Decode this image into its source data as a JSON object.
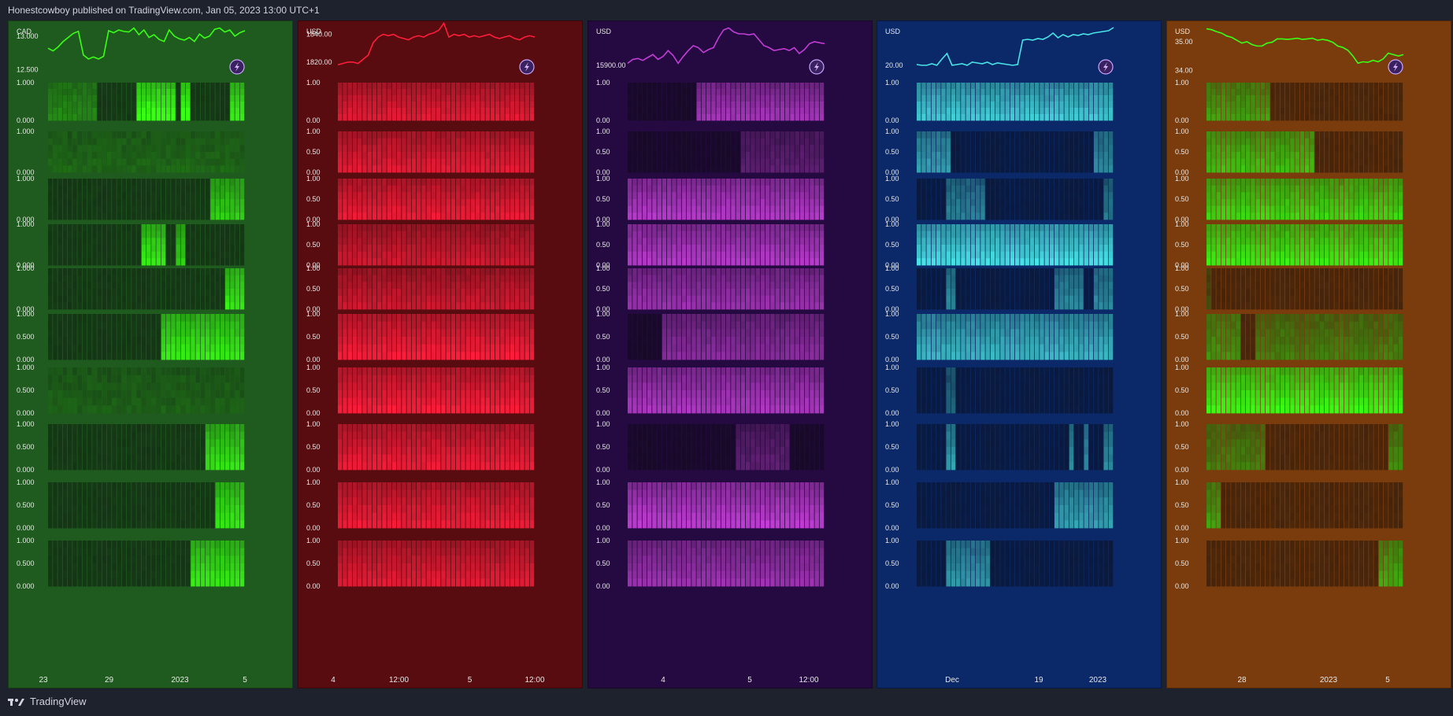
{
  "header": {
    "publisher": "Honestcowboy published on TradingView.com, Jan 05, 2023 13:00 UTC+1"
  },
  "footer": {
    "brand": "TradingView"
  },
  "chart_data": [
    {
      "type": "line+heatmap",
      "currency": "CAD",
      "background": "#1f5b1f",
      "line_color": "#39ff14",
      "cell_color": "#39ff14",
      "price_labels": [
        "13.000",
        "12.500"
      ],
      "price_range": [
        12.45,
        13.15
      ],
      "price_series": [
        12.82,
        12.78,
        12.84,
        12.92,
        12.98,
        13.04,
        13.07,
        12.72,
        12.66,
        12.69,
        12.66,
        12.7,
        13.08,
        13.05,
        13.09,
        13.07,
        13.06,
        13.12,
        13.02,
        13.09,
        12.98,
        13.02,
        12.95,
        12.92,
        13.09,
        13.0,
        12.96,
        12.94,
        12.98,
        12.92,
        13.03,
        12.97,
        13.0,
        13.1,
        13.12,
        13.06,
        13.09,
        13.0,
        13.05,
        13.08
      ],
      "subpane_labels": [
        [
          "1.000",
          "0.000"
        ],
        [
          "1.000",
          "0.000"
        ],
        [
          "1.000",
          "0.000"
        ],
        [
          "1.000",
          "0.000"
        ],
        [
          "1.000",
          "0.000"
        ],
        [
          "1.000",
          "0.500",
          "0.000"
        ],
        [
          "1.000",
          "0.500",
          "0.000"
        ],
        [
          "1.000",
          "0.500",
          "0.000"
        ],
        [
          "1.000",
          "0.500",
          "0.000"
        ],
        [
          "1.000",
          "0.500",
          "0.000"
        ]
      ],
      "x_labels": [
        "23",
        "29",
        "2023",
        "5"
      ],
      "bars": 40,
      "active": [
        [
          [
            18,
            25,
            1.0
          ],
          [
            27,
            28,
            1.0
          ],
          [
            37,
            39,
            0.9
          ],
          [
            0,
            9,
            0.35
          ]
        ],
        [
          [
            0,
            39,
            0.18
          ]
        ],
        [
          [
            33,
            39,
            0.7
          ]
        ],
        [
          [
            19,
            23,
            0.85
          ],
          [
            26,
            27,
            0.7
          ]
        ],
        [
          [
            36,
            39,
            0.85
          ]
        ],
        [
          [
            23,
            39,
            0.85
          ]
        ],
        [
          [
            0,
            39,
            0.15
          ]
        ],
        [
          [
            32,
            39,
            0.8
          ]
        ],
        [
          [
            34,
            39,
            0.85
          ]
        ],
        [
          [
            29,
            39,
            0.85
          ]
        ]
      ]
    },
    {
      "type": "line+heatmap",
      "currency": "USD",
      "background": "#580c10",
      "line_color": "#ff1d3b",
      "cell_color": "#ff1d3b",
      "price_labels": [
        "1840.00",
        "1820.00"
      ],
      "price_range": [
        1812,
        1846
      ],
      "price_series": [
        1818,
        1819,
        1820,
        1820,
        1819,
        1822,
        1825,
        1834,
        1838,
        1840,
        1839,
        1840,
        1838,
        1837,
        1836,
        1838,
        1839,
        1838,
        1840,
        1841,
        1843,
        1848,
        1838,
        1840,
        1839,
        1840,
        1838,
        1839,
        1838,
        1839,
        1840,
        1838,
        1837,
        1838,
        1839,
        1837,
        1836,
        1838,
        1839,
        1838
      ],
      "subpane_labels": [
        [
          "1.00",
          "0.00"
        ],
        [
          "1.00",
          "0.50",
          "0.00"
        ],
        [
          "1.00",
          "0.50",
          "0.00"
        ],
        [
          "1.00",
          "0.50",
          "0.00"
        ],
        [
          "1.00",
          "0.50",
          "0.00"
        ],
        [
          "1.00",
          "0.50",
          "0.00"
        ],
        [
          "1.00",
          "0.50",
          "0.00"
        ],
        [
          "1.00",
          "0.50",
          "0.00"
        ],
        [
          "1.00",
          "0.50",
          "0.00"
        ],
        [
          "1.00",
          "0.50",
          "0.00"
        ]
      ],
      "x_labels": [
        "4",
        "12:00",
        "5",
        "12:00"
      ],
      "bars": 40,
      "active": [
        [
          [
            0,
            39,
            0.8
          ]
        ],
        [
          [
            0,
            39,
            0.8
          ]
        ],
        [
          [
            0,
            39,
            0.85
          ]
        ],
        [
          [
            0,
            39,
            0.7
          ]
        ],
        [
          [
            0,
            39,
            0.7
          ]
        ],
        [
          [
            0,
            39,
            0.9
          ]
        ],
        [
          [
            0,
            39,
            0.9
          ]
        ],
        [
          [
            0,
            39,
            0.85
          ]
        ],
        [
          [
            0,
            39,
            0.85
          ]
        ],
        [
          [
            0,
            39,
            0.8
          ]
        ]
      ]
    },
    {
      "type": "line+heatmap",
      "currency": "USD",
      "background": "#250a42",
      "line_color": "#c23dd6",
      "cell_color": "#c23dd6",
      "price_labels": [
        "15900.00"
      ],
      "price_range": [
        15860,
        16100
      ],
      "price_series": [
        15910,
        15930,
        15935,
        15925,
        15940,
        15955,
        15930,
        15945,
        15975,
        15950,
        15910,
        15945,
        15975,
        16000,
        15990,
        15965,
        15980,
        15990,
        16040,
        16080,
        16090,
        16070,
        16060,
        16060,
        16055,
        16060,
        16030,
        16000,
        15990,
        15975,
        15980,
        15985,
        15975,
        15990,
        15960,
        15980,
        16010,
        16020,
        16015,
        16010
      ],
      "subpane_labels": [
        [
          "1.00",
          "0.00"
        ],
        [
          "1.00",
          "0.50",
          "0.00"
        ],
        [
          "1.00",
          "0.50",
          "0.00"
        ],
        [
          "1.00",
          "0.50",
          "0.00"
        ],
        [
          "1.00",
          "0.50",
          "0.00"
        ],
        [
          "1.00",
          "0.50",
          "0.00"
        ],
        [
          "1.00",
          "0.50",
          "0.00"
        ],
        [
          "1.00",
          "0.50",
          "0.00"
        ],
        [
          "1.00",
          "0.50",
          "0.00"
        ],
        [
          "1.00",
          "0.50",
          "0.00"
        ]
      ],
      "x_labels": [
        "4",
        "5",
        "12:00"
      ],
      "bars": 40,
      "active": [
        [
          [
            14,
            39,
            0.75
          ]
        ],
        [
          [
            23,
            39,
            0.35
          ]
        ],
        [
          [
            0,
            39,
            0.85
          ]
        ],
        [
          [
            0,
            39,
            0.85
          ]
        ],
        [
          [
            0,
            39,
            0.7
          ]
        ],
        [
          [
            7,
            39,
            0.6
          ]
        ],
        [
          [
            0,
            39,
            0.8
          ]
        ],
        [
          [
            22,
            32,
            0.35
          ]
        ],
        [
          [
            0,
            39,
            0.9
          ]
        ],
        [
          [
            0,
            39,
            0.7
          ]
        ]
      ]
    },
    {
      "type": "line+heatmap",
      "currency": "USD",
      "background": "#0b2868",
      "line_color": "#48e4e8",
      "cell_color": "#48e4e8",
      "price_labels": [
        "20.00"
      ],
      "price_range": [
        19.0,
        25.0
      ],
      "price_series": [
        20.1,
        20.0,
        20.0,
        20.2,
        20.0,
        20.8,
        21.5,
        20.0,
        20.1,
        20.2,
        20.0,
        20.4,
        20.3,
        20.2,
        20.4,
        20.1,
        20.3,
        20.2,
        20.1,
        20.0,
        20.1,
        23.2,
        23.3,
        23.2,
        23.4,
        23.3,
        23.6,
        24.1,
        23.5,
        23.9,
        23.6,
        23.9,
        23.8,
        24.0,
        23.9,
        24.1,
        24.2,
        24.3,
        24.4,
        24.8
      ],
      "subpane_labels": [
        [
          "1.00",
          "0.00"
        ],
        [
          "1.00",
          "0.50",
          "0.00"
        ],
        [
          "1.00",
          "0.50",
          "0.00"
        ],
        [
          "1.00",
          "0.50",
          "0.00"
        ],
        [
          "1.00",
          "0.50",
          "0.00"
        ],
        [
          "1.00",
          "0.50",
          "0.00"
        ],
        [
          "1.00",
          "0.50",
          "0.00"
        ],
        [
          "1.00",
          "0.50",
          "0.00"
        ],
        [
          "1.00",
          "0.50",
          "0.00"
        ],
        [
          "1.00",
          "0.50",
          "0.00"
        ]
      ],
      "x_labels": [
        "Dec",
        "19",
        "2023"
      ],
      "bars": 40,
      "active": [
        [
          [
            0,
            39,
            0.8
          ]
        ],
        [
          [
            0,
            6,
            0.6
          ],
          [
            36,
            39,
            0.5
          ]
        ],
        [
          [
            6,
            13,
            0.45
          ],
          [
            38,
            39,
            0.4
          ]
        ],
        [
          [
            0,
            39,
            0.9
          ]
        ],
        [
          [
            6,
            7,
            0.5
          ],
          [
            28,
            33,
            0.5
          ],
          [
            36,
            39,
            0.5
          ]
        ],
        [
          [
            0,
            39,
            0.7
          ]
        ],
        [
          [
            6,
            7,
            0.3
          ]
        ],
        [
          [
            6,
            7,
            0.6
          ],
          [
            31,
            31,
            0.5
          ],
          [
            34,
            34,
            0.5
          ],
          [
            38,
            39,
            0.5
          ]
        ],
        [
          [
            28,
            39,
            0.6
          ]
        ],
        [
          [
            6,
            14,
            0.55
          ]
        ]
      ]
    },
    {
      "type": "line+heatmap",
      "currency": "USD",
      "background": "#7a3c0c",
      "line_color": "#39ff14",
      "cell_color": "#39ff14",
      "price_labels": [
        "35.00",
        "34.00"
      ],
      "price_range": [
        33.9,
        35.55
      ],
      "price_series": [
        35.45,
        35.42,
        35.35,
        35.3,
        35.2,
        35.15,
        35.05,
        34.95,
        35.0,
        34.9,
        34.85,
        34.85,
        34.95,
        34.98,
        35.1,
        35.1,
        35.08,
        35.1,
        35.12,
        35.08,
        35.1,
        35.12,
        35.05,
        35.08,
        35.05,
        34.98,
        34.85,
        34.8,
        34.7,
        34.5,
        34.25,
        34.3,
        34.28,
        34.35,
        34.3,
        34.4,
        34.6,
        34.55,
        34.5,
        34.55
      ],
      "subpane_labels": [
        [
          "1.00",
          "0.00"
        ],
        [
          "1.00",
          "0.50",
          "0.00"
        ],
        [
          "1.00",
          "0.50",
          "0.00"
        ],
        [
          "1.00",
          "0.50",
          "0.00"
        ],
        [
          "1.00",
          "0.50",
          "0.00"
        ],
        [
          "1.00",
          "0.50",
          "0.00"
        ],
        [
          "1.00",
          "0.50",
          "0.00"
        ],
        [
          "1.00",
          "0.50",
          "0.00"
        ],
        [
          "1.00",
          "0.50",
          "0.00"
        ],
        [
          "1.00",
          "0.50",
          "0.00"
        ]
      ],
      "x_labels": [
        "28",
        "2023",
        "5"
      ],
      "bars": 40,
      "active": [
        [
          [
            0,
            12,
            0.5
          ]
        ],
        [
          [
            0,
            21,
            0.65
          ]
        ],
        [
          [
            0,
            39,
            0.75
          ]
        ],
        [
          [
            0,
            39,
            0.85
          ]
        ],
        [
          [
            0,
            0,
            0.1
          ]
        ],
        [
          [
            0,
            6,
            0.45
          ],
          [
            10,
            39,
            0.35
          ]
        ],
        [
          [
            0,
            39,
            0.9
          ]
        ],
        [
          [
            0,
            11,
            0.35
          ],
          [
            37,
            39,
            0.4
          ]
        ],
        [
          [
            0,
            2,
            0.5
          ]
        ],
        [
          [
            35,
            39,
            0.55
          ]
        ]
      ]
    }
  ]
}
